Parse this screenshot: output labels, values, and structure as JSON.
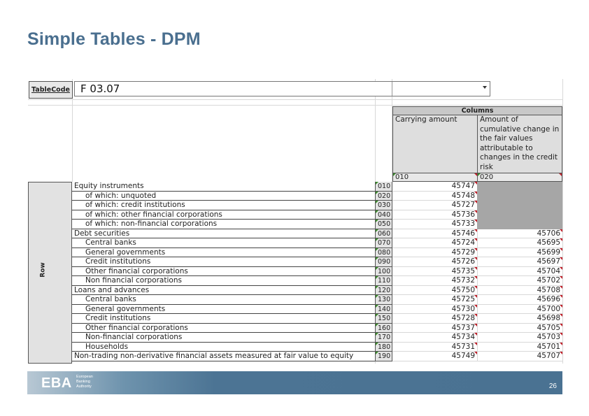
{
  "slide": {
    "title": "Simple Tables - DPM"
  },
  "sheet": {
    "table_code_label": "TableCode",
    "table_code_value": "F 03.07",
    "columns_header": "Columns",
    "row_axis_label": "Row",
    "columns": [
      {
        "label": "Carrying amount",
        "code": "010"
      },
      {
        "label": "Amount of cumulative change in the fair values attributable to changes in the credit risk",
        "code": "020"
      }
    ],
    "rows": [
      {
        "label": "Equity instruments",
        "indent": false,
        "code": "010",
        "v1": "45747",
        "v2": "",
        "na": true
      },
      {
        "label": "of which: unquoted",
        "indent": true,
        "code": "020",
        "v1": "45748",
        "v2": "",
        "na": true
      },
      {
        "label": "of which: credit institutions",
        "indent": true,
        "code": "030",
        "v1": "45727",
        "v2": "",
        "na": true
      },
      {
        "label": "of which: other financial corporations",
        "indent": true,
        "code": "040",
        "v1": "45736",
        "v2": "",
        "na": true
      },
      {
        "label": "of which: non-financial corporations",
        "indent": true,
        "code": "050",
        "v1": "45733",
        "v2": "",
        "na": true
      },
      {
        "label": "Debt securities",
        "indent": false,
        "code": "060",
        "v1": "45746",
        "v2": "45706",
        "na": false
      },
      {
        "label": "Central banks",
        "indent": true,
        "code": "070",
        "v1": "45724",
        "v2": "45695",
        "na": false
      },
      {
        "label": "General governments",
        "indent": true,
        "code": "080",
        "v1": "45729",
        "v2": "45699",
        "na": false
      },
      {
        "label": "Credit institutions",
        "indent": true,
        "code": "090",
        "v1": "45726",
        "v2": "45697",
        "na": false
      },
      {
        "label": "Other financial corporations",
        "indent": true,
        "code": "100",
        "v1": "45735",
        "v2": "45704",
        "na": false
      },
      {
        "label": "Non financial corporations",
        "indent": true,
        "code": "110",
        "v1": "45732",
        "v2": "45702",
        "na": false
      },
      {
        "label": "Loans and advances",
        "indent": false,
        "code": "120",
        "v1": "45750",
        "v2": "45708",
        "na": false
      },
      {
        "label": "Central banks",
        "indent": true,
        "code": "130",
        "v1": "45725",
        "v2": "45696",
        "na": false
      },
      {
        "label": "General governments",
        "indent": true,
        "code": "140",
        "v1": "45730",
        "v2": "45700",
        "na": false
      },
      {
        "label": "Credit institutions",
        "indent": true,
        "code": "150",
        "v1": "45728",
        "v2": "45698",
        "na": false
      },
      {
        "label": "Other financial corporations",
        "indent": true,
        "code": "160",
        "v1": "45737",
        "v2": "45705",
        "na": false
      },
      {
        "label": "Non-financial corporations",
        "indent": true,
        "code": "170",
        "v1": "45734",
        "v2": "45703",
        "na": false
      },
      {
        "label": "Households",
        "indent": true,
        "code": "180",
        "v1": "45731",
        "v2": "45701",
        "na": false
      },
      {
        "label": "Non-trading non-derivative financial assets measured at fair value to equity",
        "indent": false,
        "code": "190",
        "v1": "45749",
        "v2": "45707",
        "na": false
      }
    ]
  },
  "footer": {
    "logo_text": "EBA",
    "logo_sub": [
      "European",
      "Banking",
      "Authority"
    ],
    "page_number": "26"
  },
  "colors": {
    "title": "#4a6f8f",
    "footer": "#4a7292",
    "na_cell": "#a6a6a6"
  }
}
